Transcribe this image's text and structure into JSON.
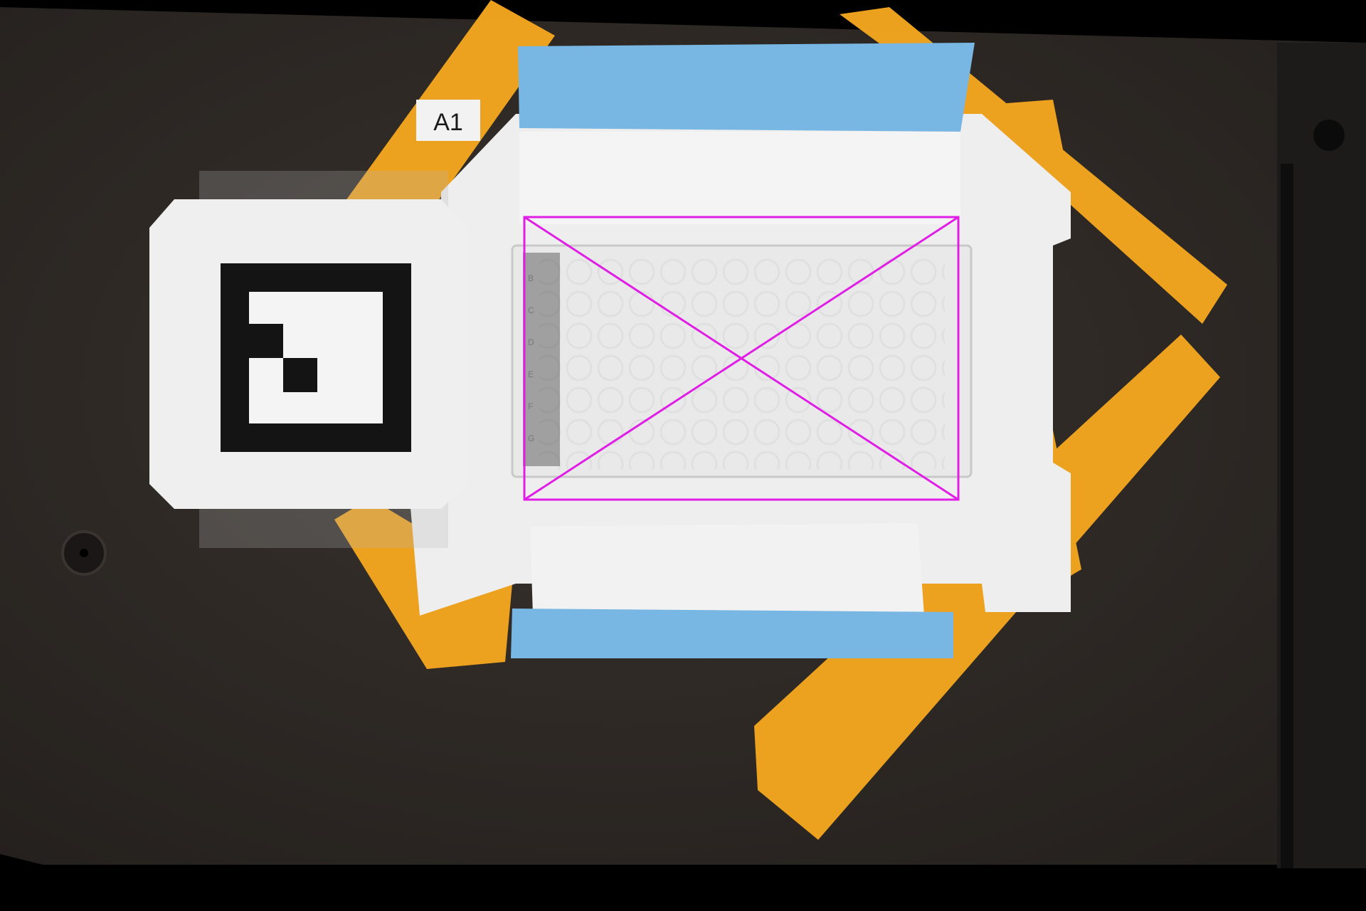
{
  "scene": {
    "label_tag": "A1",
    "well_row_letters": [
      "B",
      "C",
      "D",
      "E",
      "F",
      "G"
    ]
  },
  "colors": {
    "background": "#2e2925",
    "tape_orange": "#f3a51f",
    "tape_blue": "#78b7e3",
    "paper_white": "#efefef",
    "marker_black": "#141414",
    "overlay_magenta": "#e01ee6"
  }
}
